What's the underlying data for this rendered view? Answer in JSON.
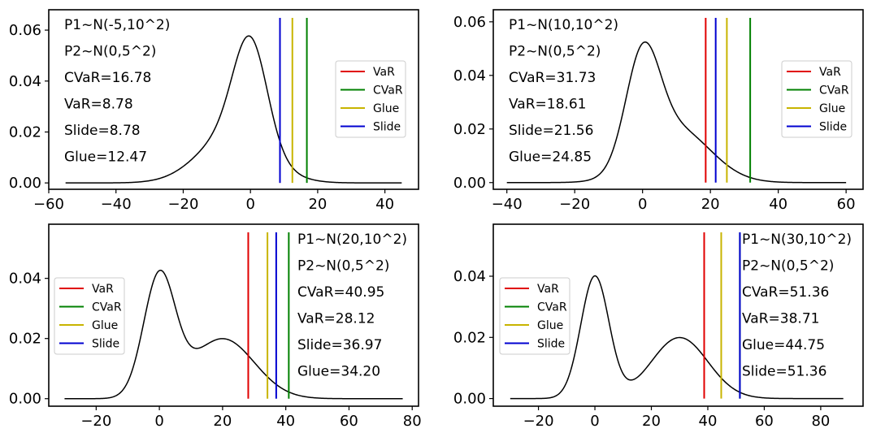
{
  "colors": {
    "VaR": "#e00000",
    "CVaR": "#008000",
    "Glue": "#c8b400",
    "Slide": "#0000d0",
    "curve": "#000000"
  },
  "chart_data": [
    {
      "type": "line",
      "title": "",
      "xlabel": "",
      "ylabel": "",
      "xlim": [
        -60,
        50
      ],
      "ylim": [
        -0.0025,
        0.068
      ],
      "xticks": [
        -60,
        -40,
        -20,
        0,
        20,
        40
      ],
      "yticks": [
        0.0,
        0.02,
        0.04,
        0.06
      ],
      "ytick_labels": [
        "0.00",
        "0.02",
        "0.04",
        "0.06"
      ],
      "x_range": [
        -55,
        45
      ],
      "components": [
        {
          "mean": -5,
          "sd": 10,
          "weight": 0.5
        },
        {
          "mean": 0,
          "sd": 5,
          "weight": 0.5
        }
      ],
      "annotations": [
        "P1~N(-5,10^2)",
        "P2~N(0,5^2)",
        "CVaR=16.78",
        "VaR=8.78",
        "Slide=8.78",
        "Glue=12.47"
      ],
      "annotation_placement": "top-left",
      "legend_placement": "center-right",
      "legend": [
        "VaR",
        "CVaR",
        "Glue",
        "Slide"
      ],
      "vlines": [
        {
          "name": "VaR",
          "x": 8.78
        },
        {
          "name": "CVaR",
          "x": 16.78
        },
        {
          "name": "Glue",
          "x": 12.47
        },
        {
          "name": "Slide",
          "x": 8.78
        }
      ]
    },
    {
      "type": "line",
      "title": "",
      "xlabel": "",
      "ylabel": "",
      "xlim": [
        -44,
        65
      ],
      "ylim": [
        -0.0025,
        0.0645
      ],
      "xticks": [
        -40,
        -20,
        0,
        20,
        40,
        60
      ],
      "yticks": [
        0.0,
        0.02,
        0.04,
        0.06
      ],
      "ytick_labels": [
        "0.00",
        "0.02",
        "0.04",
        "0.06"
      ],
      "x_range": [
        -40,
        60
      ],
      "components": [
        {
          "mean": 10,
          "sd": 10,
          "weight": 0.5
        },
        {
          "mean": 0,
          "sd": 5,
          "weight": 0.5
        }
      ],
      "annotations": [
        "P1~N(10,10^2)",
        "P2~N(0,5^2)",
        "CVaR=31.73",
        "VaR=18.61",
        "Slide=21.56",
        "Glue=24.85"
      ],
      "annotation_placement": "top-left",
      "legend_placement": "center-right",
      "legend": [
        "VaR",
        "CVaR",
        "Glue",
        "Slide"
      ],
      "vlines": [
        {
          "name": "VaR",
          "x": 18.61
        },
        {
          "name": "CVaR",
          "x": 31.73
        },
        {
          "name": "Glue",
          "x": 24.85
        },
        {
          "name": "Slide",
          "x": 21.56
        }
      ]
    },
    {
      "type": "line",
      "title": "",
      "xlabel": "",
      "ylabel": "",
      "xlim": [
        -35,
        82
      ],
      "ylim": [
        -0.0025,
        0.058
      ],
      "xticks": [
        -20,
        0,
        20,
        40,
        60,
        80
      ],
      "yticks": [
        0.0,
        0.02,
        0.04
      ],
      "ytick_labels": [
        "0.00",
        "0.02",
        "0.04"
      ],
      "x_range": [
        -30,
        77
      ],
      "components": [
        {
          "mean": 20,
          "sd": 10,
          "weight": 0.5
        },
        {
          "mean": 0,
          "sd": 5,
          "weight": 0.5
        }
      ],
      "annotations": [
        "P1~N(20,10^2)",
        "P2~N(0,5^2)",
        "CVaR=40.95",
        "VaR=28.12",
        "Slide=36.97",
        "Glue=34.20"
      ],
      "annotation_placement": "top-right",
      "legend_placement": "center-left",
      "legend": [
        "VaR",
        "CVaR",
        "Glue",
        "Slide"
      ],
      "vlines": [
        {
          "name": "VaR",
          "x": 28.12
        },
        {
          "name": "CVaR",
          "x": 40.95
        },
        {
          "name": "Glue",
          "x": 34.2
        },
        {
          "name": "Slide",
          "x": 36.97
        }
      ]
    },
    {
      "type": "line",
      "title": "",
      "xlabel": "",
      "ylabel": "",
      "xlim": [
        -36,
        95
      ],
      "ylim": [
        -0.0025,
        0.057
      ],
      "xticks": [
        -20,
        0,
        20,
        40,
        60,
        80
      ],
      "yticks": [
        0.0,
        0.02,
        0.04
      ],
      "ytick_labels": [
        "0.00",
        "0.02",
        "0.04"
      ],
      "x_range": [
        -30,
        88
      ],
      "components": [
        {
          "mean": 30,
          "sd": 10,
          "weight": 0.5
        },
        {
          "mean": 0,
          "sd": 5,
          "weight": 0.5
        }
      ],
      "annotations": [
        "P1~N(30,10^2)",
        "P2~N(0,5^2)",
        "CVaR=51.36",
        "VaR=38.71",
        "Glue=44.75",
        "Slide=51.36"
      ],
      "annotation_placement": "top-right",
      "legend_placement": "center-left",
      "legend": [
        "VaR",
        "CVaR",
        "Glue",
        "Slide"
      ],
      "vlines": [
        {
          "name": "VaR",
          "x": 38.71
        },
        {
          "name": "CVaR",
          "x": 51.36
        },
        {
          "name": "Glue",
          "x": 44.75
        },
        {
          "name": "Slide",
          "x": 51.36
        }
      ]
    }
  ]
}
